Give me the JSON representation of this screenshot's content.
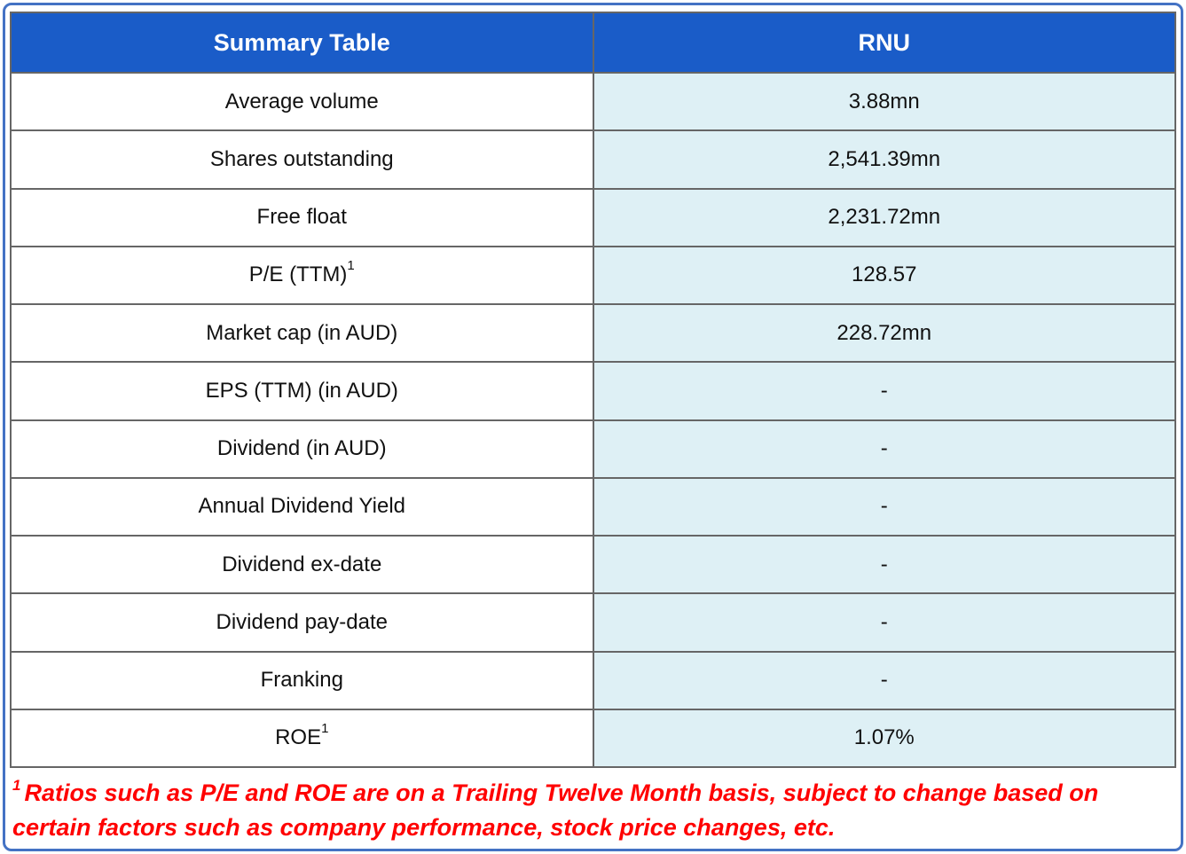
{
  "table": {
    "header": {
      "left": "Summary Table",
      "right": "RNU"
    },
    "rows": [
      {
        "label": "Average volume",
        "sup": "",
        "value": "3.88mn"
      },
      {
        "label": "Shares outstanding",
        "sup": "",
        "value": "2,541.39mn"
      },
      {
        "label": "Free float",
        "sup": "",
        "value": "2,231.72mn"
      },
      {
        "label": "P/E (TTM)",
        "sup": "1",
        "value": "128.57"
      },
      {
        "label": "Market cap (in AUD)",
        "sup": "",
        "value": "228.72mn"
      },
      {
        "label": "EPS (TTM) (in AUD)",
        "sup": "",
        "value": "-"
      },
      {
        "label": "Dividend (in AUD)",
        "sup": "",
        "value": "-"
      },
      {
        "label": "Annual Dividend Yield",
        "sup": "",
        "value": "-"
      },
      {
        "label": "Dividend ex-date",
        "sup": "",
        "value": "-"
      },
      {
        "label": "Dividend pay-date",
        "sup": "",
        "value": "-"
      },
      {
        "label": "Franking",
        "sup": "",
        "value": "-"
      },
      {
        "label": "ROE",
        "sup": "1",
        "value": "1.07%"
      }
    ]
  },
  "footnote": {
    "sup": "1",
    "text": "Ratios such as P/E and ROE are on a Trailing Twelve Month basis, subject to change based on certain factors such as company performance, stock price changes, etc."
  },
  "colors": {
    "header_bg": "#1A5CC8",
    "value_bg": "#DEF0F5",
    "frame": "#4472C4",
    "grid": "#666666",
    "footnote_red": "#FF0000"
  }
}
